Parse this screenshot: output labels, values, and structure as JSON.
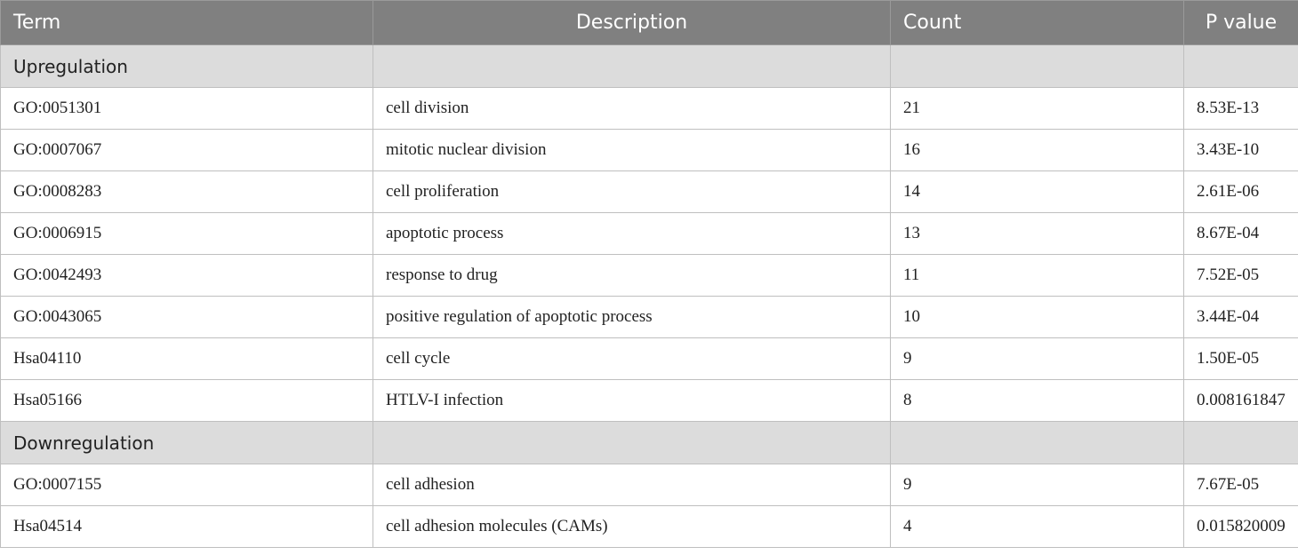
{
  "headers": {
    "term": "Term",
    "description": "Description",
    "count": "Count",
    "pvalue": "P value"
  },
  "sections": [
    {
      "label": "Upregulation",
      "rows": [
        {
          "term": "GO:0051301",
          "description": "cell division",
          "count": "21",
          "pvalue": "8.53E-13"
        },
        {
          "term": "GO:0007067",
          "description": "mitotic nuclear division",
          "count": "16",
          "pvalue": "3.43E-10"
        },
        {
          "term": "GO:0008283",
          "description": "cell proliferation",
          "count": "14",
          "pvalue": "2.61E-06"
        },
        {
          "term": "GO:0006915",
          "description": "apoptotic process",
          "count": "13",
          "pvalue": "8.67E-04"
        },
        {
          "term": "GO:0042493",
          "description": "response to drug",
          "count": "11",
          "pvalue": "7.52E-05"
        },
        {
          "term": "GO:0043065",
          "description": "positive regulation of apoptotic process",
          "count": "10",
          "pvalue": "3.44E-04"
        },
        {
          "term": "Hsa04110",
          "description": "cell cycle",
          "count": "9",
          "pvalue": "1.50E-05"
        },
        {
          "term": "Hsa05166",
          "description": "HTLV-I infection",
          "count": "8",
          "pvalue": "0.008161847"
        }
      ]
    },
    {
      "label": "Downregulation",
      "rows": [
        {
          "term": "GO:0007155",
          "description": "cell adhesion",
          "count": "9",
          "pvalue": "7.67E-05"
        },
        {
          "term": "Hsa04514",
          "description": "cell adhesion molecules (CAMs)",
          "count": "4",
          "pvalue": "0.015820009"
        }
      ]
    }
  ]
}
